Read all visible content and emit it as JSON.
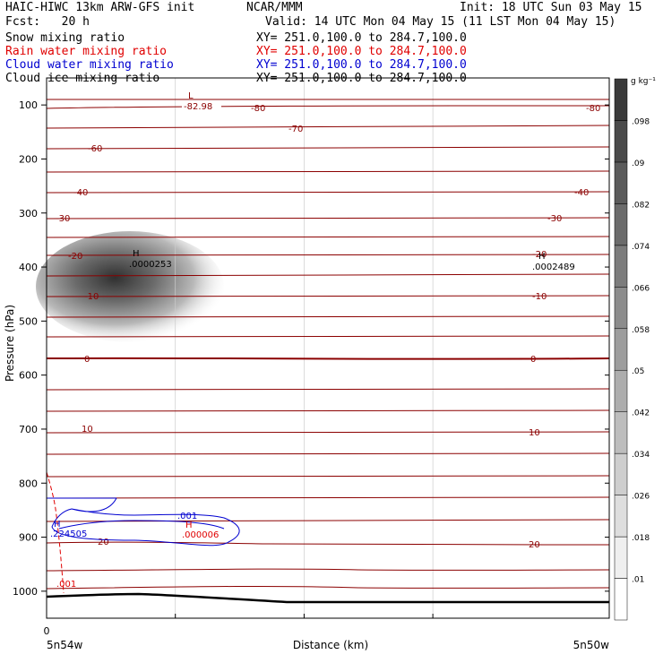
{
  "header": {
    "title_left": "HAIC-HIWC 13km ARW-GFS init",
    "org": "NCAR/MMM",
    "init": "Init: 18 UTC Sun 03 May 15",
    "fcst": "Fcst:   20 h",
    "valid": "Valid: 14 UTC Mon 04 May 15 (11 LST Mon 04 May 15)",
    "fields": [
      {
        "name": "Snow mixing ratio",
        "xy": "XY= 251.0,100.0 to 284.7,100.0",
        "color": "#000000"
      },
      {
        "name": "Rain water mixing ratio",
        "xy": "XY= 251.0,100.0 to 284.7,100.0",
        "color": "#e00000"
      },
      {
        "name": "Cloud water mixing ratio",
        "xy": "XY= 251.0,100.0 to 284.7,100.0",
        "color": "#0000d0"
      },
      {
        "name": "Cloud ice mixing ratio",
        "xy": "XY= 251.0,100.0 to 284.7,100.0",
        "color": "#000000"
      }
    ]
  },
  "chart_data": {
    "type": "contour",
    "ylabel": "Pressure (hPa)",
    "xlabel": "Distance (km)",
    "x_tick_zero": "0",
    "x_left_label": "5n54w",
    "x_right_label": "5n50w",
    "yticks": [
      100,
      200,
      300,
      400,
      500,
      600,
      700,
      800,
      900,
      1000
    ],
    "ylim": [
      50,
      1050
    ],
    "colorbar": {
      "unit": "g kg⁻¹",
      "levels": [
        ".01",
        ".018",
        ".026",
        ".034",
        ".042",
        ".05",
        ".058",
        ".066",
        ".074",
        ".082",
        ".09",
        ".098"
      ]
    },
    "temperature_contours": [
      {
        "value": -80,
        "labels": [
          "-80",
          "-80"
        ]
      },
      {
        "value": -70,
        "labels": [
          "-70"
        ]
      },
      {
        "value": -60,
        "labels": [
          "-60"
        ]
      },
      {
        "value": -40,
        "labels": [
          "-40",
          "-40"
        ]
      },
      {
        "value": -30,
        "labels": [
          "-30",
          "-30"
        ]
      },
      {
        "value": -20,
        "labels": [
          "-20",
          "-20"
        ]
      },
      {
        "value": -10,
        "labels": [
          "-10",
          "-10"
        ]
      },
      {
        "value": 0,
        "labels": [
          "0",
          "0"
        ]
      },
      {
        "value": 10,
        "labels": [
          "10",
          "10"
        ]
      },
      {
        "value": 20,
        "labels": [
          "20",
          "20"
        ]
      }
    ],
    "extrema": {
      "low_symbol": "L",
      "low_value": "-82.98",
      "snow_high_symbol": "H",
      "snow_high_value": ".0000253",
      "right_high_symbol": "H",
      "right_high_value": ".0002489",
      "cloud_high_symbol": "H",
      "cloud_high_value": ".224505",
      "rain_high_symbol": "H",
      "rain_high_value": ".000006",
      "cloud_contour_label": ".001",
      "rain_contour_label": ".001"
    },
    "colors": {
      "temperature": "#8b0000",
      "cloud_water": "#0000d0",
      "rain_water": "#e00000",
      "terrain": "#000000"
    }
  }
}
